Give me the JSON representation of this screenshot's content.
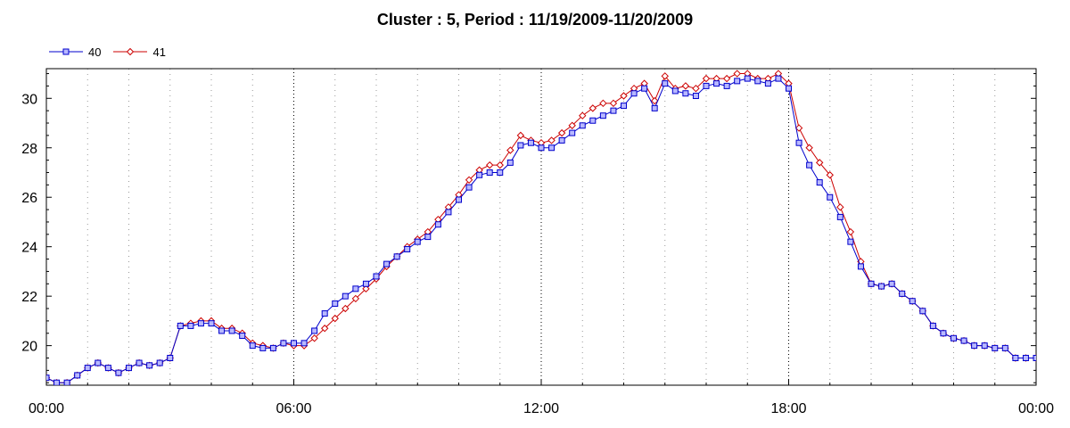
{
  "chart_data": {
    "type": "line",
    "title": "Cluster : 5, Period : 11/19/2009-11/20/2009",
    "xlabel": "",
    "ylabel": "",
    "x_unit": "hours since 00:00 (11/19/2009)",
    "xlim": [
      0,
      24
    ],
    "ylim": [
      18.4,
      31.2
    ],
    "x_ticks": [
      0,
      6,
      12,
      18,
      24
    ],
    "x_tick_labels": [
      "00:00",
      "06:00",
      "12:00",
      "18:00",
      "00:00"
    ],
    "y_ticks": [
      20,
      22,
      24,
      26,
      28,
      30
    ],
    "y_tick_labels": [
      "20",
      "22",
      "24",
      "26",
      "28",
      "30"
    ],
    "grid": true,
    "legend": "top-left",
    "series": [
      {
        "name": "40",
        "color": "#0000cc",
        "marker": "square",
        "x": [
          0,
          0.25,
          0.5,
          0.75,
          1.0,
          1.25,
          1.5,
          1.75,
          2.0,
          2.25,
          2.5,
          2.75,
          3.0,
          3.25,
          3.5,
          3.75,
          4.0,
          4.25,
          4.5,
          4.75,
          5.0,
          5.25,
          5.5,
          5.75,
          6.0,
          6.25,
          6.5,
          6.75,
          7.0,
          7.25,
          7.5,
          7.75,
          8.0,
          8.25,
          8.5,
          8.75,
          9.0,
          9.25,
          9.5,
          9.75,
          10.0,
          10.25,
          10.5,
          10.75,
          11.0,
          11.25,
          11.5,
          11.75,
          12.0,
          12.25,
          12.5,
          12.75,
          13.0,
          13.25,
          13.5,
          13.75,
          14.0,
          14.25,
          14.5,
          14.75,
          15.0,
          15.25,
          15.5,
          15.75,
          16.0,
          16.25,
          16.5,
          16.75,
          17.0,
          17.25,
          17.5,
          17.75,
          18.0,
          18.25,
          18.5,
          18.75,
          19.0,
          19.25,
          19.5,
          19.75,
          20.0,
          20.25,
          20.5,
          20.75,
          21.0,
          21.25,
          21.5,
          21.75,
          22.0,
          22.25,
          22.5,
          22.75,
          23.0,
          23.25,
          23.5,
          23.75,
          24.0
        ],
        "y": [
          18.7,
          18.5,
          18.5,
          18.8,
          19.1,
          19.3,
          19.1,
          18.9,
          19.1,
          19.3,
          19.2,
          19.3,
          19.5,
          20.8,
          20.8,
          20.9,
          20.9,
          20.6,
          20.6,
          20.4,
          20.0,
          19.9,
          19.9,
          20.1,
          20.1,
          20.1,
          20.6,
          21.3,
          21.7,
          22.0,
          22.3,
          22.5,
          22.8,
          23.3,
          23.6,
          23.9,
          24.2,
          24.4,
          24.9,
          25.4,
          25.9,
          26.4,
          26.9,
          27.0,
          27.0,
          27.4,
          28.1,
          28.2,
          28.0,
          28.0,
          28.3,
          28.6,
          28.9,
          29.1,
          29.3,
          29.5,
          29.7,
          30.2,
          30.4,
          29.6,
          30.6,
          30.3,
          30.2,
          30.1,
          30.5,
          30.6,
          30.5,
          30.7,
          30.8,
          30.7,
          30.6,
          30.8,
          30.4,
          28.2,
          27.3,
          26.6,
          26.0,
          25.2,
          24.2,
          23.2,
          22.5,
          22.4,
          22.5,
          22.1,
          21.8,
          21.4,
          20.8,
          20.5,
          20.3,
          20.2,
          20.0,
          20.0,
          19.9,
          19.9,
          19.5,
          19.5,
          19.5
        ]
      },
      {
        "name": "41",
        "color": "#cc0000",
        "marker": "diamond",
        "x": [
          0,
          0.25,
          0.5,
          0.75,
          1.0,
          1.25,
          1.5,
          1.75,
          2.0,
          2.25,
          2.5,
          2.75,
          3.0,
          3.25,
          3.5,
          3.75,
          4.0,
          4.25,
          4.5,
          4.75,
          5.0,
          5.25,
          5.5,
          5.75,
          6.0,
          6.25,
          6.5,
          6.75,
          7.0,
          7.25,
          7.5,
          7.75,
          8.0,
          8.25,
          8.5,
          8.75,
          9.0,
          9.25,
          9.5,
          9.75,
          10.0,
          10.25,
          10.5,
          10.75,
          11.0,
          11.25,
          11.5,
          11.75,
          12.0,
          12.25,
          12.5,
          12.75,
          13.0,
          13.25,
          13.5,
          13.75,
          14.0,
          14.25,
          14.5,
          14.75,
          15.0,
          15.25,
          15.5,
          15.75,
          16.0,
          16.25,
          16.5,
          16.75,
          17.0,
          17.25,
          17.5,
          17.75,
          18.0,
          18.25,
          18.5,
          18.75,
          19.0,
          19.25,
          19.5,
          19.75,
          20.0,
          20.25,
          20.5,
          20.75,
          21.0,
          21.25,
          21.5,
          21.75,
          22.0,
          22.25,
          22.5,
          22.75,
          23.0,
          23.25,
          23.5,
          23.75,
          24.0
        ],
        "y": [
          18.7,
          18.5,
          18.5,
          18.8,
          19.1,
          19.3,
          19.1,
          18.9,
          19.1,
          19.3,
          19.2,
          19.3,
          19.5,
          20.8,
          20.9,
          21.0,
          21.0,
          20.7,
          20.7,
          20.5,
          20.1,
          20.0,
          19.9,
          20.1,
          20.0,
          20.0,
          20.3,
          20.7,
          21.1,
          21.5,
          21.9,
          22.3,
          22.7,
          23.2,
          23.6,
          24.0,
          24.3,
          24.6,
          25.1,
          25.6,
          26.1,
          26.7,
          27.1,
          27.3,
          27.3,
          27.9,
          28.5,
          28.3,
          28.2,
          28.3,
          28.6,
          28.9,
          29.3,
          29.6,
          29.8,
          29.8,
          30.1,
          30.4,
          30.6,
          29.9,
          30.9,
          30.4,
          30.5,
          30.4,
          30.8,
          30.8,
          30.8,
          31.0,
          31.0,
          30.8,
          30.8,
          31.0,
          30.6,
          28.8,
          28.0,
          27.4,
          26.9,
          25.6,
          24.6,
          23.4,
          22.5,
          22.4,
          22.5,
          22.1,
          21.8,
          21.4,
          20.8,
          20.5,
          20.3,
          20.2,
          20.0,
          20.0,
          19.9,
          19.9,
          19.5,
          19.5,
          19.5
        ]
      }
    ]
  }
}
